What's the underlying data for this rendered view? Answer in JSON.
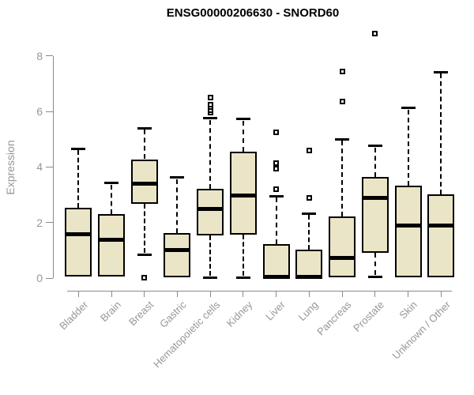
{
  "chart_data": {
    "type": "boxplot",
    "title": "ENSG00000206630 - SNORD60",
    "ylabel": "Expression",
    "xlabel": "",
    "yticks": [
      0,
      2,
      4,
      6,
      8
    ],
    "ylim": [
      0,
      8.9
    ],
    "grid": false,
    "legend": "none",
    "categories": [
      "Bladder",
      "Brain",
      "Breast",
      "Gastric",
      "Hematopoietic cells",
      "Kidney",
      "Liver",
      "Lung",
      "Pancreas",
      "Prostate",
      "Skin",
      "Unknown / Other"
    ],
    "boxes": [
      {
        "category": "Bladder",
        "whisker_low": 0.05,
        "q1": 0.05,
        "median": 1.57,
        "q3": 2.54,
        "whisker_high": 4.66,
        "outliers": []
      },
      {
        "category": "Brain",
        "whisker_low": 0.05,
        "q1": 0.05,
        "median": 1.39,
        "q3": 2.3,
        "whisker_high": 3.42,
        "outliers": []
      },
      {
        "category": "Breast",
        "whisker_low": 0.85,
        "q1": 2.67,
        "median": 3.4,
        "q3": 4.28,
        "whisker_high": 5.4,
        "outliers": [
          0.02
        ]
      },
      {
        "category": "Gastric",
        "whisker_low": 0.02,
        "q1": 0.02,
        "median": 1.0,
        "q3": 1.62,
        "whisker_high": 3.62,
        "outliers": []
      },
      {
        "category": "Hematopoietic cells",
        "whisker_low": 0.02,
        "q1": 1.53,
        "median": 2.5,
        "q3": 3.2,
        "whisker_high": 5.75,
        "outliers": [
          5.95,
          6.05,
          6.15,
          6.25,
          6.5
        ]
      },
      {
        "category": "Kidney",
        "whisker_low": 0.02,
        "q1": 1.57,
        "median": 2.98,
        "q3": 4.56,
        "whisker_high": 5.72,
        "outliers": []
      },
      {
        "category": "Liver",
        "whisker_low": 0.02,
        "q1": 0.02,
        "median": 0.05,
        "q3": 1.22,
        "whisker_high": 2.95,
        "outliers": [
          3.2,
          3.95,
          4.15,
          5.25
        ]
      },
      {
        "category": "Lung",
        "whisker_low": 0.02,
        "q1": 0.02,
        "median": 0.05,
        "q3": 1.02,
        "whisker_high": 2.33,
        "outliers": [
          2.9,
          4.6
        ]
      },
      {
        "category": "Pancreas",
        "whisker_low": 0.02,
        "q1": 0.02,
        "median": 0.72,
        "q3": 2.22,
        "whisker_high": 5.0,
        "outliers": [
          6.35,
          7.45
        ]
      },
      {
        "category": "Prostate",
        "whisker_low": 0.05,
        "q1": 0.9,
        "median": 2.88,
        "q3": 3.65,
        "whisker_high": 4.75,
        "outliers": [
          8.8
        ]
      },
      {
        "category": "Skin",
        "whisker_low": 0.02,
        "q1": 0.02,
        "median": 1.9,
        "q3": 3.33,
        "whisker_high": 6.12,
        "outliers": []
      },
      {
        "category": "Unknown / Other",
        "whisker_low": 0.02,
        "q1": 0.02,
        "median": 1.88,
        "q3": 3.02,
        "whisker_high": 7.42,
        "outliers": []
      }
    ],
    "colors": {
      "box_fill": "#EBE5C7",
      "box_border": "#000000",
      "axis": "#8A8A8A",
      "tick_label": "#979797",
      "title": "#000000",
      "background": "#FFFFFF"
    }
  }
}
